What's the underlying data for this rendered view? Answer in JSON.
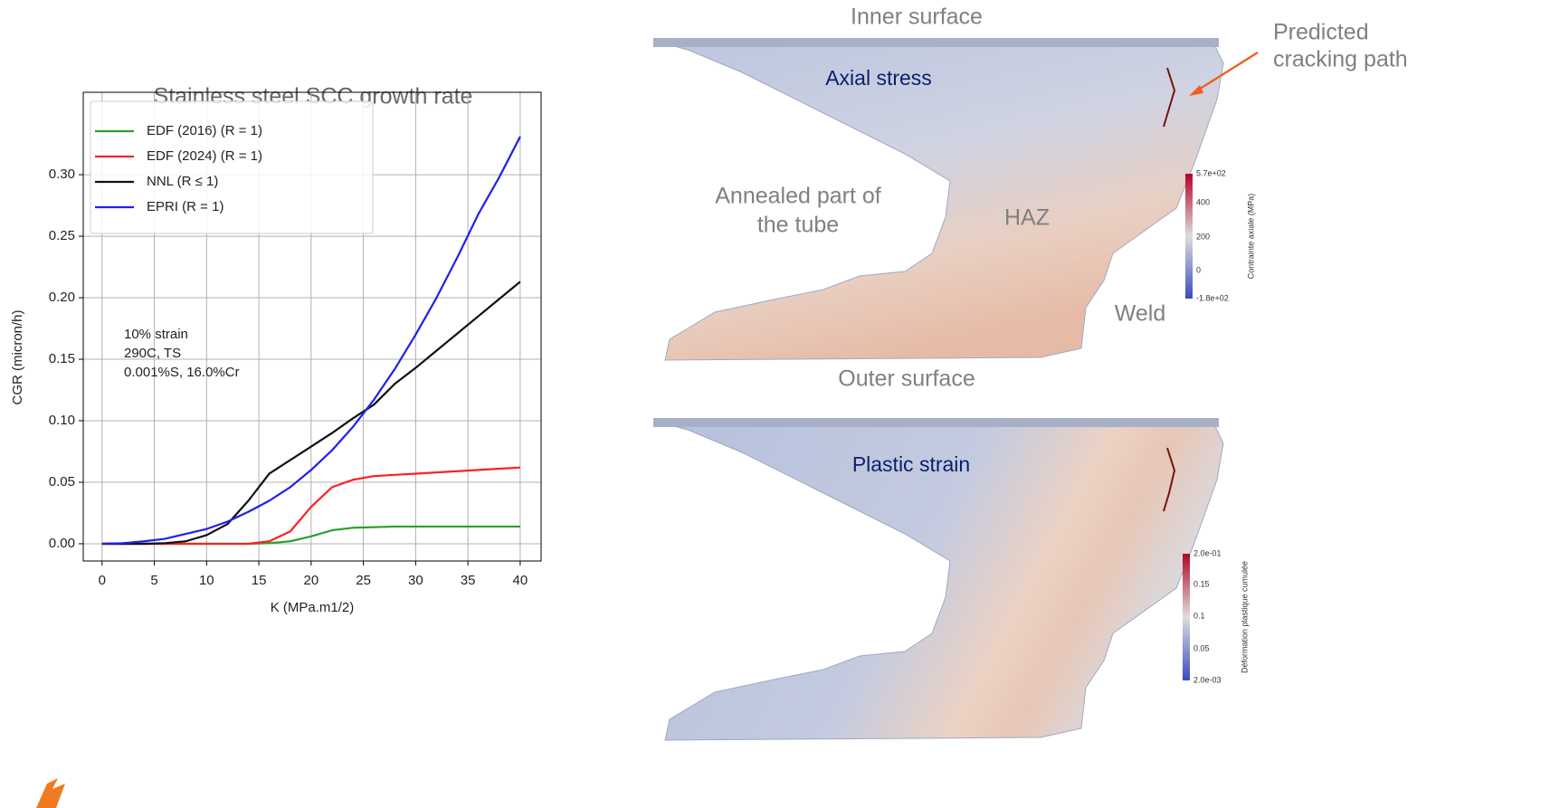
{
  "chart_data": {
    "type": "line",
    "title": "Stainless steel SCC growth rate",
    "x_label": "K (MPa.m1/2)",
    "y_label": "CGR (micron/h)",
    "annotation": [
      "10% strain",
      "290C, TS",
      "0.001%S, 16.0%Cr"
    ],
    "x": [
      0,
      2,
      4,
      6,
      8,
      10,
      12,
      14,
      16,
      18,
      20,
      22,
      24,
      26,
      28,
      30,
      32,
      34,
      36,
      38,
      40
    ],
    "series": [
      {
        "name": "EDF (2016)  (R = 1)",
        "color": "#2ca02c",
        "values": [
          0,
          0,
          0,
          0,
          0,
          0,
          0,
          0,
          0.0005,
          0.002,
          0.006,
          0.011,
          0.013,
          0.0135,
          0.014,
          0.014,
          0.014,
          0.014,
          0.014,
          0.014,
          0.014
        ]
      },
      {
        "name": "EDF (2024)  (R = 1)",
        "color": "#ff2020",
        "values": [
          0,
          0,
          0,
          0,
          0,
          0,
          0,
          0,
          0.002,
          0.01,
          0.03,
          0.046,
          0.052,
          0.055,
          0.056,
          0.057,
          0.058,
          0.059,
          0.06,
          0.061,
          0.062
        ]
      },
      {
        "name": "NNL (R ≤ 1)",
        "color": "#111111",
        "values": [
          0,
          0,
          0,
          0.0005,
          0.002,
          0.007,
          0.016,
          0.035,
          0.057,
          0.068,
          0.079,
          0.09,
          0.102,
          0.113,
          0.13,
          0.143,
          0.157,
          0.171,
          0.185,
          0.199,
          0.213
        ]
      },
      {
        "name": "EPRI (R = 1)",
        "color": "#2020ee",
        "values": [
          0,
          0.0005,
          0.002,
          0.004,
          0.008,
          0.012,
          0.018,
          0.026,
          0.035,
          0.046,
          0.06,
          0.076,
          0.095,
          0.117,
          0.142,
          0.17,
          0.2,
          0.233,
          0.268,
          0.298,
          0.331
        ]
      }
    ],
    "xlim": [
      -1.8,
      42
    ],
    "ylim": [
      -0.014,
      0.367
    ],
    "xticks": [
      0,
      5,
      10,
      15,
      20,
      25,
      30,
      35,
      40
    ],
    "yticks": [
      {
        "value": 0,
        "label": "0.00"
      },
      {
        "value": 0.05,
        "label": "0.05"
      },
      {
        "value": 0.1,
        "label": "0.10"
      },
      {
        "value": 0.15,
        "label": "0.15"
      },
      {
        "value": 0.2,
        "label": "0.20"
      },
      {
        "value": 0.25,
        "label": "0.25"
      },
      {
        "value": 0.3,
        "label": "0.30"
      }
    ],
    "grid": true,
    "legend": "upper left"
  },
  "labels": {
    "inner_surface": "Inner surface",
    "predicted": [
      "Predicted",
      "cracking path"
    ],
    "axial_stress": "Axial stress",
    "annealed": [
      "Annealed part of",
      "the tube"
    ],
    "haz": "HAZ",
    "weld": "Weld",
    "outer_surface": "Outer surface",
    "plastic_strain": "Plastic strain"
  },
  "colorbars": [
    {
      "title": "Contrainte axiale (MPa)",
      "ticks": [
        "5.7e+02",
        "400",
        "200",
        "0",
        "-1.8e+02"
      ]
    },
    {
      "title": "Déformation plastique cumulée",
      "ticks": [
        "2.0e-01",
        "0.15",
        "0.1",
        "0.05",
        "2.0e-03"
      ]
    }
  ]
}
